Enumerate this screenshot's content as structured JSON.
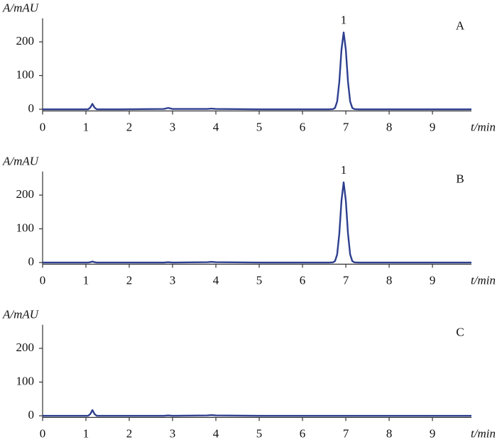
{
  "chart_data": [
    {
      "type": "line",
      "panel_label": "A",
      "y_label": "A/mAU",
      "x_label": "t/min",
      "annotations": [
        {
          "text": "1",
          "x": 6.95
        }
      ],
      "xlim": [
        0,
        9.9
      ],
      "ylim": [
        -5,
        270
      ],
      "xticks": [
        0,
        1,
        2,
        3,
        4,
        5,
        6,
        7,
        8,
        9
      ],
      "yticks": [
        0,
        100,
        200
      ],
      "series": [
        {
          "color": "#2e3f8f",
          "x": [
            0,
            0.5,
            1.05,
            1.1,
            1.15,
            1.2,
            1.25,
            1.8,
            2.8,
            2.9,
            3.0,
            3.8,
            3.9,
            4.0,
            5,
            6,
            6.6,
            6.7,
            6.75,
            6.8,
            6.85,
            6.9,
            6.95,
            7.0,
            7.05,
            7.1,
            7.15,
            7.2,
            7.3,
            8,
            9,
            9.9
          ],
          "values": [
            0,
            0,
            0,
            5,
            16,
            5,
            0,
            0,
            1,
            4,
            1,
            1,
            2,
            1,
            0,
            0,
            0,
            0.4,
            3.9,
            23,
            82,
            177,
            228,
            177,
            82,
            23,
            3.9,
            0.4,
            0,
            0,
            0,
            0
          ]
        }
      ]
    },
    {
      "type": "line",
      "panel_label": "B",
      "y_label": "A/mAU",
      "x_label": "t/min",
      "annotations": [
        {
          "text": "1",
          "x": 6.95
        }
      ],
      "xlim": [
        0,
        9.9
      ],
      "ylim": [
        -5,
        270
      ],
      "xticks": [
        0,
        1,
        2,
        3,
        4,
        5,
        6,
        7,
        8,
        9
      ],
      "yticks": [
        0,
        100,
        200
      ],
      "series": [
        {
          "color": "#2e3f8f",
          "x": [
            0,
            0.5,
            1.05,
            1.1,
            1.15,
            1.2,
            1.25,
            1.8,
            2.8,
            2.9,
            3.0,
            3.8,
            3.9,
            4.0,
            5,
            6,
            6.6,
            6.7,
            6.75,
            6.8,
            6.85,
            6.9,
            6.95,
            7.0,
            7.05,
            7.1,
            7.15,
            7.2,
            7.3,
            8,
            9,
            9.9
          ],
          "values": [
            0,
            0,
            0,
            1,
            3,
            1,
            0,
            0,
            0,
            1,
            0,
            1,
            2,
            1,
            0,
            0,
            0,
            0.4,
            4.1,
            24,
            86,
            184,
            238,
            184,
            86,
            24,
            4.1,
            0.4,
            0,
            0,
            0,
            0
          ]
        }
      ]
    },
    {
      "type": "line",
      "panel_label": "C",
      "y_label": "A/mAU",
      "x_label": "t/min",
      "annotations": [],
      "xlim": [
        0,
        9.9
      ],
      "ylim": [
        -5,
        270
      ],
      "xticks": [
        0,
        1,
        2,
        3,
        4,
        5,
        6,
        7,
        8,
        9
      ],
      "yticks": [
        0,
        100,
        200
      ],
      "series": [
        {
          "color": "#2e3f8f",
          "x": [
            0,
            0.5,
            1.05,
            1.1,
            1.15,
            1.2,
            1.25,
            1.8,
            2.8,
            2.9,
            3.0,
            3.8,
            3.9,
            4.0,
            5,
            6,
            7,
            8,
            9,
            9.9
          ],
          "values": [
            0,
            0,
            0,
            5,
            17,
            5,
            0,
            0,
            0,
            1,
            0,
            1,
            2,
            1,
            0,
            0,
            0,
            0,
            0,
            0
          ]
        }
      ]
    }
  ]
}
